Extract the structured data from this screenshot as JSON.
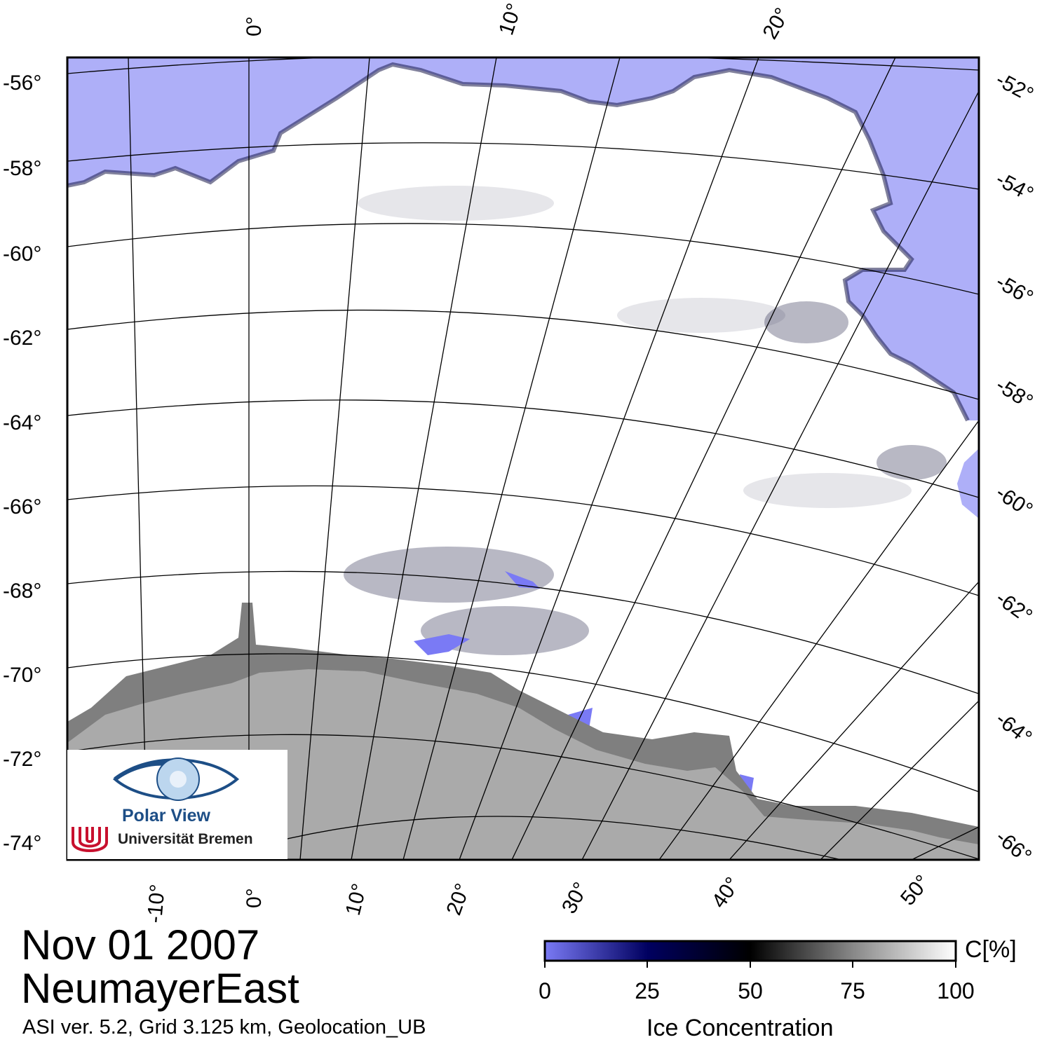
{
  "map": {
    "date": "Nov 01 2007",
    "region": "NeumayerEast",
    "product_info": "ASI ver. 5.2,  Grid 3.125 km, Geolocation_UB",
    "longitude_labels_top": [
      "0°",
      "10°",
      "20°"
    ],
    "longitude_labels_bottom": [
      "-10°",
      "0°",
      "10°",
      "20°",
      "30°",
      "40°",
      "50°"
    ],
    "latitude_labels_left": [
      "-56°",
      "-58°",
      "-60°",
      "-62°",
      "-64°",
      "-66°",
      "-68°",
      "-70°",
      "-72°",
      "-74°"
    ],
    "latitude_labels_right": [
      "-52°",
      "-54°",
      "-56°",
      "-58°",
      "-60°",
      "-62°",
      "-64°",
      "-66°"
    ],
    "colors": {
      "open_water": "#aeaff8",
      "land": "#aaaaaa",
      "ice_shelf": "#7f7f7f",
      "sea_ice": "#ffffff",
      "graticule": "#000000"
    }
  },
  "colorbar": {
    "unit": "C[%]",
    "title": "Ice Concentration",
    "ticks": [
      "0",
      "25",
      "50",
      "75",
      "100"
    ],
    "colors": [
      "#7a7af5",
      "#000060",
      "#000000",
      "#888888",
      "#ffffff"
    ]
  },
  "logo": {
    "name": "Polar View",
    "institution": "Universität Bremen"
  }
}
